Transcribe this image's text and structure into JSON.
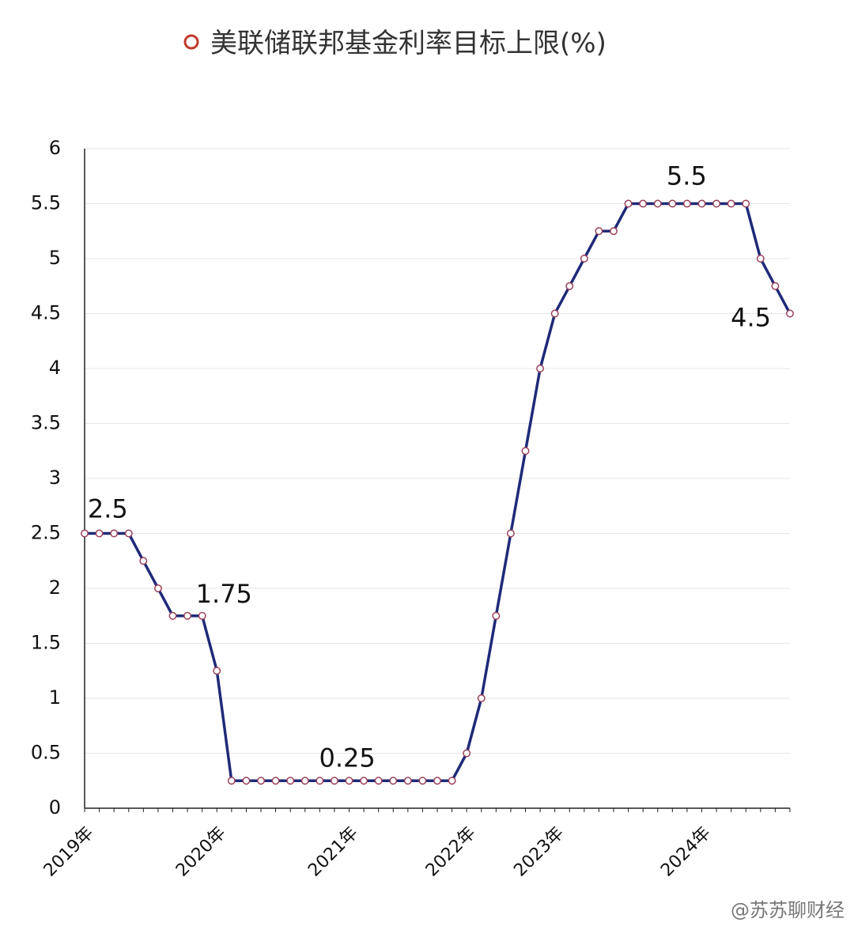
{
  "title": "美联储联邦基金利率目标上限(%)",
  "watermark": "@苏苏聊财经",
  "chart_data": {
    "type": "line",
    "ylim": [
      0,
      6
    ],
    "yticks": [
      0,
      0.5,
      1,
      1.5,
      2,
      2.5,
      3,
      3.5,
      4,
      4.5,
      5,
      5.5,
      6
    ],
    "ytick_labels": [
      "0",
      "0.5",
      "1",
      "1.5",
      "2",
      "2.5",
      "3",
      "3.5",
      "4",
      "4.5",
      "5",
      "5.5",
      "6"
    ],
    "xlim": [
      0,
      48
    ],
    "xticks": [
      0,
      9,
      18,
      26,
      32,
      42
    ],
    "xtick_labels": [
      "2019年",
      "2020年",
      "2021年",
      "2022年",
      "2023年",
      "2024年"
    ],
    "grid": true,
    "line_color": "#1f2a78",
    "marker_edge": "#9a3f58",
    "marker_face": "#ffffff",
    "series": [
      {
        "values": [
          2.5,
          2.5,
          2.5,
          2.5,
          2.25,
          2.0,
          1.75,
          1.75,
          1.75,
          1.25,
          0.25,
          0.25,
          0.25,
          0.25,
          0.25,
          0.25,
          0.25,
          0.25,
          0.25,
          0.25,
          0.25,
          0.25,
          0.25,
          0.25,
          0.25,
          0.25,
          0.5,
          1.0,
          1.75,
          2.5,
          3.25,
          4.0,
          4.5,
          4.75,
          5.0,
          5.25,
          5.25,
          5.5,
          5.5,
          5.5,
          5.5,
          5.5,
          5.5,
          5.5,
          5.5,
          5.5,
          5.0,
          4.75,
          4.5
        ]
      }
    ],
    "annotations": [
      {
        "text": "2.5",
        "x": 1.5,
        "y": 2.5
      },
      {
        "text": "1.75",
        "x": 8,
        "y": 1.75
      },
      {
        "text": "0.25",
        "x": 18,
        "y": 0.25
      },
      {
        "text": "5.5",
        "x": 41,
        "y": 5.5
      },
      {
        "text": "4.5",
        "x": 45.8,
        "y": 4.5
      }
    ]
  }
}
